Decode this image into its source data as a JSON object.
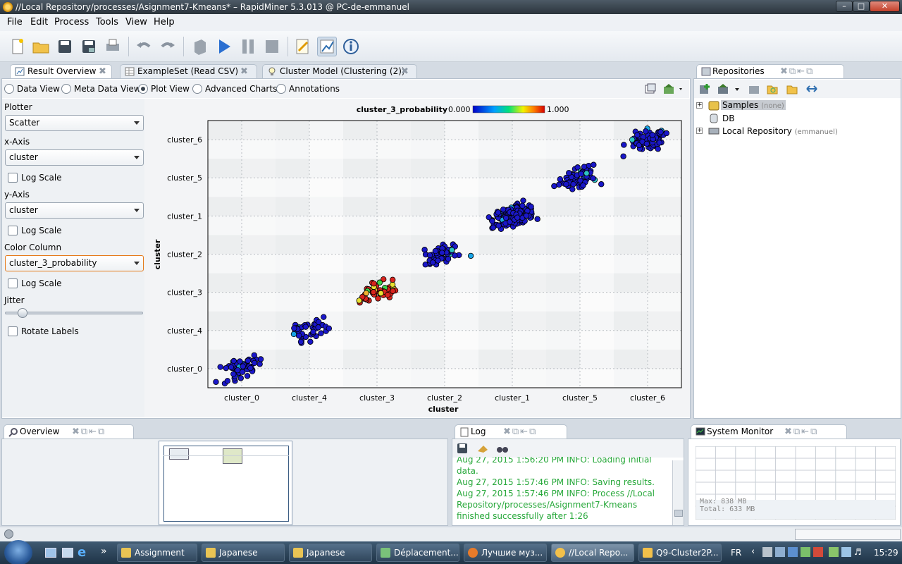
{
  "window": {
    "title": "//Local Repository/processes/Asignment7-Kmeans* – RapidMiner 5.3.013 @ PC-de-emmanuel"
  },
  "menu": [
    "File",
    "Edit",
    "Process",
    "Tools",
    "View",
    "Help"
  ],
  "tabs": [
    {
      "label": "Result Overview",
      "icon": "result-overview-icon"
    },
    {
      "label": "ExampleSet (Read CSV)",
      "icon": "table-icon"
    },
    {
      "label": "Cluster Model (Clustering (2))",
      "icon": "bulb-icon"
    }
  ],
  "views": [
    "Data View",
    "Meta Data View",
    "Plot View",
    "Advanced Charts",
    "Annotations"
  ],
  "selected_view": "Plot View",
  "plotter": {
    "plotter_label": "Plotter",
    "plotter_value": "Scatter",
    "x_label": "x-Axis",
    "x_value": "cluster",
    "y_label": "y-Axis",
    "y_value": "cluster",
    "color_label": "Color Column",
    "color_value": "cluster_3_probability",
    "log_scale": "Log Scale",
    "jitter": "Jitter",
    "jitter_level": 0.1,
    "rotate_labels": "Rotate Labels"
  },
  "chart_data": {
    "type": "scatter",
    "x_label": "cluster",
    "y_label": "cluster",
    "x_categories": [
      "cluster_0",
      "cluster_4",
      "cluster_3",
      "cluster_2",
      "cluster_1",
      "cluster_5",
      "cluster_6"
    ],
    "y_categories": [
      "cluster_6",
      "cluster_5",
      "cluster_1",
      "cluster_2",
      "cluster_3",
      "cluster_4",
      "cluster_0"
    ],
    "color_column": "cluster_3_probability",
    "color_min": "0.000",
    "color_max": "1.000",
    "clusters": [
      {
        "x": "cluster_0",
        "y": "cluster_0",
        "count": 55,
        "color": "#1a17c9"
      },
      {
        "x": "cluster_4",
        "y": "cluster_4",
        "count": 40,
        "color": "#1a17c9"
      },
      {
        "x": "cluster_3",
        "y": "cluster_3",
        "count": 45,
        "color": "#d8241e"
      },
      {
        "x": "cluster_2",
        "y": "cluster_2",
        "count": 55,
        "color": "#1a17c9"
      },
      {
        "x": "cluster_1",
        "y": "cluster_1",
        "count": 180,
        "color": "#1a17c9"
      },
      {
        "x": "cluster_5",
        "y": "cluster_5",
        "count": 60,
        "color": "#1a17c9"
      },
      {
        "x": "cluster_6",
        "y": "cluster_6",
        "count": 65,
        "color": "#1a17c9"
      }
    ],
    "grid": true
  },
  "repositories": {
    "title": "Repositories",
    "items": [
      {
        "label": "Samples",
        "note": "(none)"
      },
      {
        "label": "DB",
        "note": ""
      },
      {
        "label": "Local Repository",
        "note": "(emmanuel)"
      }
    ]
  },
  "overview": {
    "title": "Overview"
  },
  "log": {
    "title": "Log",
    "lines": [
      "Aug 27, 2015 1:56:20 PM INFO: Loading initial data.",
      "Aug 27, 2015 1:57:46 PM INFO: Saving results.",
      "Aug 27, 2015 1:57:46 PM INFO: Process //Local Repository/processes/Asignment7-Kmeans finished successfully after 1:26"
    ]
  },
  "system_monitor": {
    "title": "System Monitor",
    "max": "Max:   838 MB",
    "total": "Total: 633 MB"
  },
  "taskbar": {
    "items": [
      "Assignment",
      "Japanese",
      "Japanese",
      "Déplacement...",
      "Лучшие муз...",
      "//Local Repo...",
      "Q9-Cluster2P..."
    ],
    "lang": "FR",
    "clock": "15:29"
  },
  "colors": {
    "title_bar": "#2b343c",
    "point_blue": "#1a17c9",
    "point_red": "#d8241e",
    "focus_orange": "#e57a1a",
    "log_green": "#27a83a"
  }
}
